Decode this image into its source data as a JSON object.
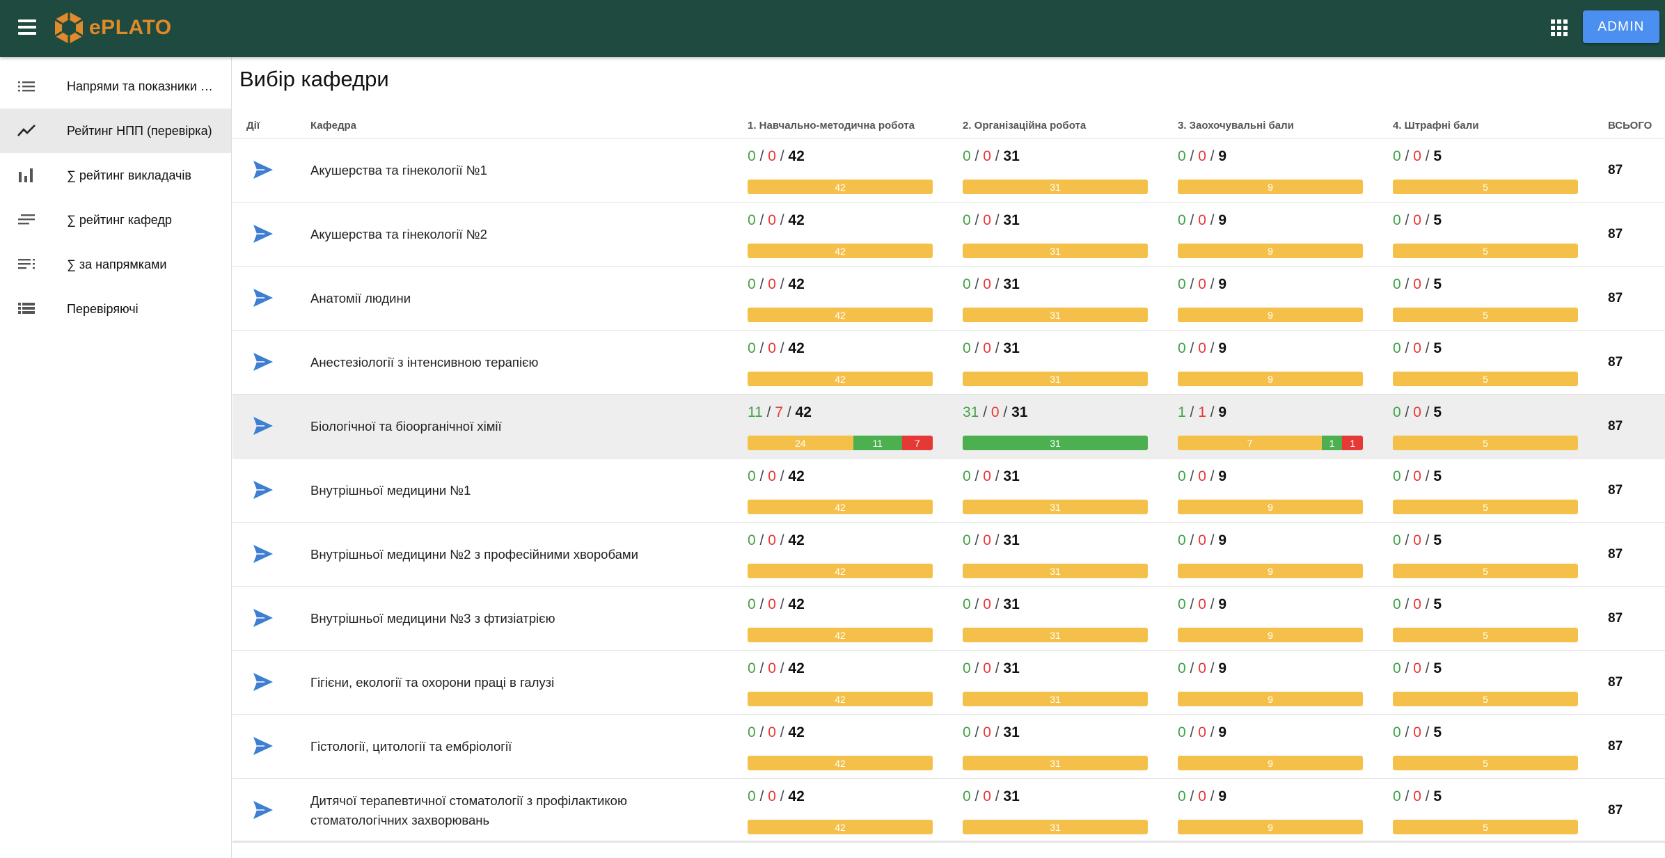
{
  "app": {
    "title": "ePLATO",
    "admin_label": "ADMIN"
  },
  "colors": {
    "appbar": "#1f4a3f",
    "accent": "#4b8ff0",
    "done": "#43a047",
    "rejected": "#e53935",
    "pending": "#f5c04a"
  },
  "sidebar": {
    "items": [
      {
        "label": "Напрями та показники діяльності",
        "icon": "list-icon"
      },
      {
        "label": "Рейтинг НПП (перевірка)",
        "icon": "trending-icon",
        "active": true
      },
      {
        "label": "∑ рейтинг викладачів",
        "icon": "bar-chart-icon"
      },
      {
        "label": "∑ рейтинг кафедр",
        "icon": "sort-lines-icon"
      },
      {
        "label": "∑ за напрямками",
        "icon": "list-detail-icon"
      },
      {
        "label": "Перевіряючі",
        "icon": "table-list-icon"
      }
    ]
  },
  "page": {
    "title": "Вибір кафедри"
  },
  "table": {
    "headers": {
      "actions": "Дії",
      "dept": "Кафедра",
      "c1": "1. Навчально-методична робота",
      "c2": "2. Організаційна робота",
      "c3": "3. Заохочувальні бали",
      "c4": "4. Штрафні бали",
      "total": "ВСЬОГО"
    },
    "rows": [
      {
        "dept": "Акушерства та гінекології №1",
        "total": "87",
        "cols": [
          {
            "a": "0",
            "b": "0",
            "c": "42",
            "bar": [
              {
                "v": "42",
                "k": "y",
                "p": 100
              }
            ]
          },
          {
            "a": "0",
            "b": "0",
            "c": "31",
            "bar": [
              {
                "v": "31",
                "k": "y",
                "p": 100
              }
            ]
          },
          {
            "a": "0",
            "b": "0",
            "c": "9",
            "bar": [
              {
                "v": "9",
                "k": "y",
                "p": 100
              }
            ]
          },
          {
            "a": "0",
            "b": "0",
            "c": "5",
            "bar": [
              {
                "v": "5",
                "k": "y",
                "p": 100
              }
            ]
          }
        ]
      },
      {
        "dept": "Акушерства та гінекології №2",
        "total": "87",
        "cols": [
          {
            "a": "0",
            "b": "0",
            "c": "42",
            "bar": [
              {
                "v": "42",
                "k": "y",
                "p": 100
              }
            ]
          },
          {
            "a": "0",
            "b": "0",
            "c": "31",
            "bar": [
              {
                "v": "31",
                "k": "y",
                "p": 100
              }
            ]
          },
          {
            "a": "0",
            "b": "0",
            "c": "9",
            "bar": [
              {
                "v": "9",
                "k": "y",
                "p": 100
              }
            ]
          },
          {
            "a": "0",
            "b": "0",
            "c": "5",
            "bar": [
              {
                "v": "5",
                "k": "y",
                "p": 100
              }
            ]
          }
        ]
      },
      {
        "dept": "Анатомії людини",
        "total": "87",
        "cols": [
          {
            "a": "0",
            "b": "0",
            "c": "42",
            "bar": [
              {
                "v": "42",
                "k": "y",
                "p": 100
              }
            ]
          },
          {
            "a": "0",
            "b": "0",
            "c": "31",
            "bar": [
              {
                "v": "31",
                "k": "y",
                "p": 100
              }
            ]
          },
          {
            "a": "0",
            "b": "0",
            "c": "9",
            "bar": [
              {
                "v": "9",
                "k": "y",
                "p": 100
              }
            ]
          },
          {
            "a": "0",
            "b": "0",
            "c": "5",
            "bar": [
              {
                "v": "5",
                "k": "y",
                "p": 100
              }
            ]
          }
        ]
      },
      {
        "dept": "Анестезіології з інтенсивною терапією",
        "total": "87",
        "cols": [
          {
            "a": "0",
            "b": "0",
            "c": "42",
            "bar": [
              {
                "v": "42",
                "k": "y",
                "p": 100
              }
            ]
          },
          {
            "a": "0",
            "b": "0",
            "c": "31",
            "bar": [
              {
                "v": "31",
                "k": "y",
                "p": 100
              }
            ]
          },
          {
            "a": "0",
            "b": "0",
            "c": "9",
            "bar": [
              {
                "v": "9",
                "k": "y",
                "p": 100
              }
            ]
          },
          {
            "a": "0",
            "b": "0",
            "c": "5",
            "bar": [
              {
                "v": "5",
                "k": "y",
                "p": 100
              }
            ]
          }
        ]
      },
      {
        "dept": "Біологічної та біоорганічної хімії",
        "total": "87",
        "highlight": true,
        "cols": [
          {
            "a": "11",
            "b": "7",
            "c": "42",
            "bar": [
              {
                "v": "24",
                "k": "y",
                "p": 57.1
              },
              {
                "v": "11",
                "k": "gr",
                "p": 26.2
              },
              {
                "v": "7",
                "k": "rd",
                "p": 16.7
              }
            ]
          },
          {
            "a": "31",
            "b": "0",
            "c": "31",
            "bar": [
              {
                "v": "31",
                "k": "gr",
                "p": 100
              }
            ]
          },
          {
            "a": "1",
            "b": "1",
            "c": "9",
            "bar": [
              {
                "v": "7",
                "k": "y",
                "p": 77.8
              },
              {
                "v": "1",
                "k": "gr",
                "p": 11.1
              },
              {
                "v": "1",
                "k": "rd",
                "p": 11.1
              }
            ]
          },
          {
            "a": "0",
            "b": "0",
            "c": "5",
            "bar": [
              {
                "v": "5",
                "k": "y",
                "p": 100
              }
            ]
          }
        ]
      },
      {
        "dept": "Внутрішньої медицини №1",
        "total": "87",
        "cols": [
          {
            "a": "0",
            "b": "0",
            "c": "42",
            "bar": [
              {
                "v": "42",
                "k": "y",
                "p": 100
              }
            ]
          },
          {
            "a": "0",
            "b": "0",
            "c": "31",
            "bar": [
              {
                "v": "31",
                "k": "y",
                "p": 100
              }
            ]
          },
          {
            "a": "0",
            "b": "0",
            "c": "9",
            "bar": [
              {
                "v": "9",
                "k": "y",
                "p": 100
              }
            ]
          },
          {
            "a": "0",
            "b": "0",
            "c": "5",
            "bar": [
              {
                "v": "5",
                "k": "y",
                "p": 100
              }
            ]
          }
        ]
      },
      {
        "dept": "Внутрішньої медицини №2 з професійними хворобами",
        "total": "87",
        "cols": [
          {
            "a": "0",
            "b": "0",
            "c": "42",
            "bar": [
              {
                "v": "42",
                "k": "y",
                "p": 100
              }
            ]
          },
          {
            "a": "0",
            "b": "0",
            "c": "31",
            "bar": [
              {
                "v": "31",
                "k": "y",
                "p": 100
              }
            ]
          },
          {
            "a": "0",
            "b": "0",
            "c": "9",
            "bar": [
              {
                "v": "9",
                "k": "y",
                "p": 100
              }
            ]
          },
          {
            "a": "0",
            "b": "0",
            "c": "5",
            "bar": [
              {
                "v": "5",
                "k": "y",
                "p": 100
              }
            ]
          }
        ]
      },
      {
        "dept": "Внутрішньої медицини №3 з фтизіатрією",
        "total": "87",
        "cols": [
          {
            "a": "0",
            "b": "0",
            "c": "42",
            "bar": [
              {
                "v": "42",
                "k": "y",
                "p": 100
              }
            ]
          },
          {
            "a": "0",
            "b": "0",
            "c": "31",
            "bar": [
              {
                "v": "31",
                "k": "y",
                "p": 100
              }
            ]
          },
          {
            "a": "0",
            "b": "0",
            "c": "9",
            "bar": [
              {
                "v": "9",
                "k": "y",
                "p": 100
              }
            ]
          },
          {
            "a": "0",
            "b": "0",
            "c": "5",
            "bar": [
              {
                "v": "5",
                "k": "y",
                "p": 100
              }
            ]
          }
        ]
      },
      {
        "dept": "Гігієни, екології та охорони праці в галузі",
        "total": "87",
        "cols": [
          {
            "a": "0",
            "b": "0",
            "c": "42",
            "bar": [
              {
                "v": "42",
                "k": "y",
                "p": 100
              }
            ]
          },
          {
            "a": "0",
            "b": "0",
            "c": "31",
            "bar": [
              {
                "v": "31",
                "k": "y",
                "p": 100
              }
            ]
          },
          {
            "a": "0",
            "b": "0",
            "c": "9",
            "bar": [
              {
                "v": "9",
                "k": "y",
                "p": 100
              }
            ]
          },
          {
            "a": "0",
            "b": "0",
            "c": "5",
            "bar": [
              {
                "v": "5",
                "k": "y",
                "p": 100
              }
            ]
          }
        ]
      },
      {
        "dept": "Гістології, цитології та ембріології",
        "total": "87",
        "cols": [
          {
            "a": "0",
            "b": "0",
            "c": "42",
            "bar": [
              {
                "v": "42",
                "k": "y",
                "p": 100
              }
            ]
          },
          {
            "a": "0",
            "b": "0",
            "c": "31",
            "bar": [
              {
                "v": "31",
                "k": "y",
                "p": 100
              }
            ]
          },
          {
            "a": "0",
            "b": "0",
            "c": "9",
            "bar": [
              {
                "v": "9",
                "k": "y",
                "p": 100
              }
            ]
          },
          {
            "a": "0",
            "b": "0",
            "c": "5",
            "bar": [
              {
                "v": "5",
                "k": "y",
                "p": 100
              }
            ]
          }
        ]
      },
      {
        "dept": "Дитячої терапевтичної стоматології з профілактикою стоматологічних захворювань",
        "total": "87",
        "cols": [
          {
            "a": "0",
            "b": "0",
            "c": "42",
            "bar": [
              {
                "v": "42",
                "k": "y",
                "p": 100
              }
            ]
          },
          {
            "a": "0",
            "b": "0",
            "c": "31",
            "bar": [
              {
                "v": "31",
                "k": "y",
                "p": 100
              }
            ]
          },
          {
            "a": "0",
            "b": "0",
            "c": "9",
            "bar": [
              {
                "v": "9",
                "k": "y",
                "p": 100
              }
            ]
          },
          {
            "a": "0",
            "b": "0",
            "c": "5",
            "bar": [
              {
                "v": "5",
                "k": "y",
                "p": 100
              }
            ]
          }
        ]
      }
    ]
  }
}
